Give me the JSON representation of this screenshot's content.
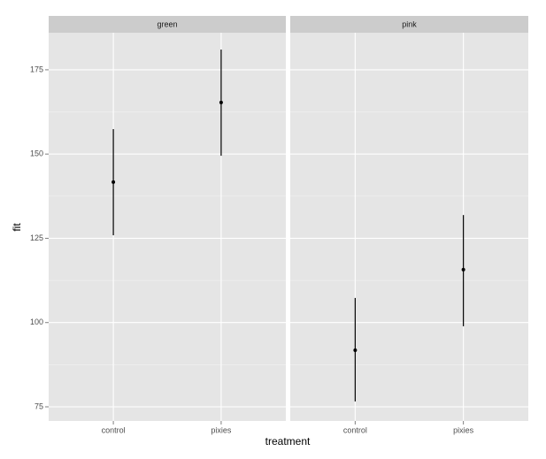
{
  "chart_data": {
    "type": "pointrange",
    "xlabel": "treatment",
    "ylabel": "fit",
    "ylim": [
      70.8,
      186
    ],
    "yticks": [
      75,
      100,
      125,
      150,
      175
    ],
    "grid": true,
    "color": "#000000",
    "facets": [
      {
        "title": "green",
        "categories": [
          "control",
          "pixies"
        ],
        "values": [
          141.7,
          165.3
        ],
        "lower": [
          125.9,
          149.5
        ],
        "upper": [
          157.4,
          181.0
        ]
      },
      {
        "title": "pink",
        "categories": [
          "control",
          "pixies"
        ],
        "values": [
          91.8,
          115.7
        ],
        "lower": [
          76.6,
          98.9
        ],
        "upper": [
          107.3,
          131.9
        ]
      }
    ]
  }
}
